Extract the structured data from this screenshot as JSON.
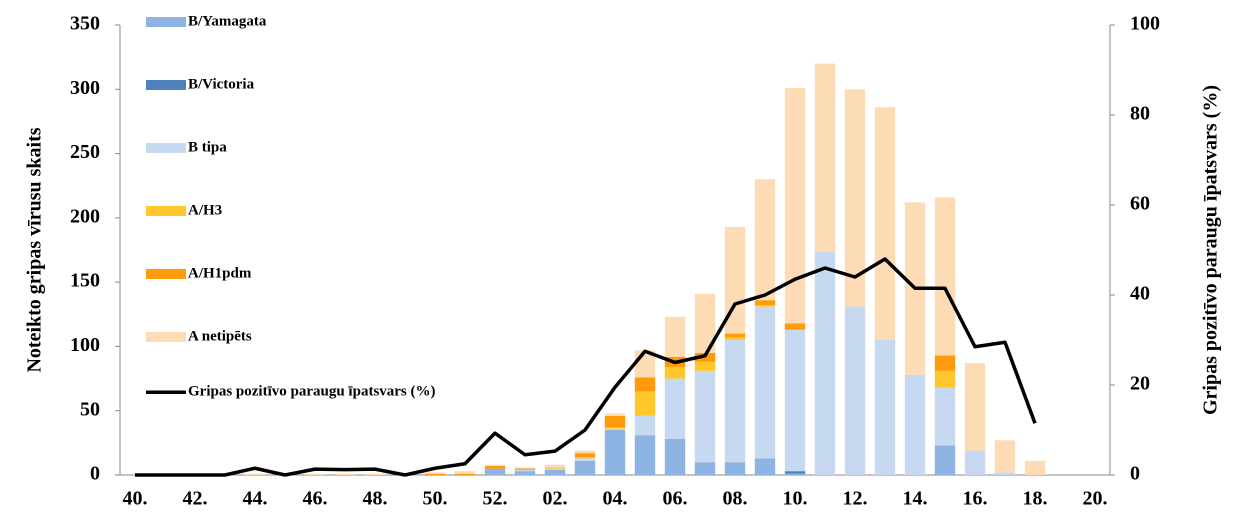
{
  "chart_data": {
    "type": "bar",
    "stacked": true,
    "categories": [
      "40.",
      null,
      "42.",
      null,
      "44.",
      null,
      "46.",
      null,
      "48.",
      null,
      "50.",
      null,
      "52.",
      null,
      "02.",
      null,
      "04.",
      null,
      "06.",
      null,
      "08.",
      null,
      "10.",
      null,
      "12.",
      null,
      "14.",
      null,
      "16.",
      null,
      "18.",
      null,
      "20."
    ],
    "ylabel": "Noteikto gripas vīrusu skaits",
    "y2label": "Gripas pozitīvo paraugu īpatsvars (%)",
    "ylim": [
      0,
      350
    ],
    "yticks": [
      0,
      50,
      100,
      150,
      200,
      250,
      300,
      350
    ],
    "y2lim": [
      0,
      100
    ],
    "y2ticks": [
      0,
      20,
      40,
      60,
      80,
      100
    ],
    "legend": "top-left",
    "series": [
      {
        "name": "B/Yamagata",
        "color": "#8db3e2",
        "values": [
          0,
          0,
          0,
          0,
          0,
          0,
          0,
          0,
          0,
          0,
          0,
          0,
          5,
          3,
          4,
          11,
          35,
          31,
          28,
          10,
          10,
          13,
          1,
          0,
          0,
          0,
          0,
          23,
          0,
          0,
          0,
          0,
          0
        ]
      },
      {
        "name": "B/Victoria",
        "color": "#4f81bd",
        "values": [
          0,
          0,
          0,
          0,
          0,
          0,
          0,
          0,
          0,
          0,
          0,
          0,
          0,
          0,
          0,
          0,
          0,
          0,
          0,
          0,
          0,
          0,
          2,
          0,
          0,
          0,
          0,
          0,
          0,
          0,
          0,
          0,
          0
        ]
      },
      {
        "name": "B tipa",
        "color": "#c6d9f1",
        "values": [
          0,
          0,
          0,
          0,
          0,
          0,
          0,
          0,
          0,
          0,
          0,
          0,
          0,
          1,
          1,
          2,
          1,
          15,
          47,
          71,
          95,
          118,
          110,
          174,
          131,
          105,
          78,
          45,
          19,
          2,
          0,
          0,
          0
        ]
      },
      {
        "name": "A/H3",
        "color": "#ffc72c",
        "values": [
          0,
          0,
          0,
          0,
          0,
          0,
          0,
          0,
          0,
          0,
          0,
          0,
          0,
          0,
          1,
          1,
          1,
          19,
          9,
          7,
          2,
          1,
          0,
          0,
          0,
          0,
          0,
          13,
          0,
          0,
          0,
          0,
          0
        ]
      },
      {
        "name": "A/H1pdm",
        "color": "#ff9b0a",
        "values": [
          0,
          0,
          0,
          0,
          0,
          0,
          0,
          0,
          0,
          0,
          1,
          1,
          2,
          1,
          0,
          3,
          9,
          11,
          8,
          7,
          3,
          4,
          5,
          0,
          0,
          0,
          0,
          12,
          0,
          0,
          0,
          0,
          0
        ]
      },
      {
        "name": "A netipēts",
        "color": "#fddcb5",
        "values": [
          0,
          0,
          0,
          0,
          1,
          0,
          1,
          1,
          1,
          0,
          1,
          2,
          1,
          1,
          2,
          2,
          2,
          21,
          31,
          46,
          83,
          94,
          183,
          146,
          169,
          181,
          134,
          123,
          68,
          25,
          11,
          0,
          0
        ]
      },
      {
        "name": "Gripas pozitīvo paraugu īpatsvars (%)",
        "type": "line",
        "axis": "y2",
        "color": "#000000",
        "values": [
          0,
          0,
          0,
          0,
          1.5,
          0,
          1.3,
          1.2,
          1.3,
          0,
          1.5,
          2.5,
          9.3,
          4.5,
          5.3,
          10,
          19.5,
          27.5,
          25,
          26.5,
          38,
          40,
          43.5,
          46,
          44,
          48,
          41.5,
          41.5,
          28.5,
          29.5,
          11.5,
          null,
          null
        ]
      }
    ]
  }
}
